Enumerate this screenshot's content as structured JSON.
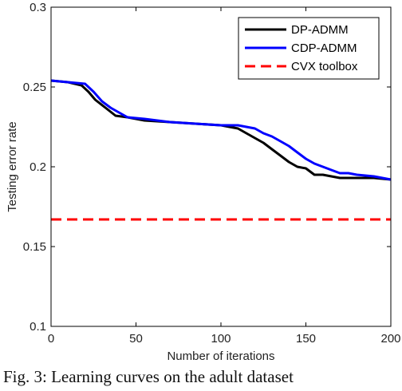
{
  "caption": "Fig. 3: Learning curves on the adult dataset",
  "chart_data": {
    "type": "line",
    "title": "",
    "xlabel": "Number of iterations",
    "ylabel": "Testing error rate",
    "xlim": [
      0,
      200
    ],
    "ylim": [
      0.1,
      0.3
    ],
    "xticks": [
      0,
      50,
      100,
      150,
      200
    ],
    "xtick_labels": [
      "0",
      "50",
      "100",
      "150",
      "200"
    ],
    "yticks": [
      0.1,
      0.15,
      0.2,
      0.25,
      0.3
    ],
    "ytick_labels": [
      "0.1",
      "0.15",
      "0.2",
      "0.25",
      "0.3"
    ],
    "grid": false,
    "legend_position": "top-right",
    "series": [
      {
        "name": "DP-ADMM",
        "color": "#000000",
        "style": "solid",
        "x": [
          0,
          10,
          18,
          22,
          26,
          32,
          38,
          45,
          55,
          70,
          85,
          100,
          110,
          115,
          120,
          125,
          130,
          135,
          140,
          145,
          150,
          155,
          160,
          165,
          170,
          180,
          190,
          200
        ],
        "y": [
          0.254,
          0.253,
          0.251,
          0.247,
          0.242,
          0.237,
          0.232,
          0.231,
          0.229,
          0.228,
          0.227,
          0.226,
          0.224,
          0.221,
          0.218,
          0.215,
          0.211,
          0.207,
          0.203,
          0.2,
          0.199,
          0.195,
          0.195,
          0.194,
          0.193,
          0.193,
          0.193,
          0.192
        ]
      },
      {
        "name": "CDP-ADMM",
        "color": "#0000ff",
        "style": "solid",
        "x": [
          0,
          10,
          20,
          25,
          30,
          35,
          40,
          45,
          55,
          70,
          85,
          100,
          110,
          115,
          120,
          125,
          130,
          135,
          140,
          145,
          150,
          155,
          160,
          165,
          170,
          175,
          180,
          190,
          200
        ],
        "y": [
          0.254,
          0.253,
          0.252,
          0.247,
          0.241,
          0.237,
          0.234,
          0.231,
          0.23,
          0.228,
          0.227,
          0.226,
          0.226,
          0.225,
          0.224,
          0.221,
          0.219,
          0.216,
          0.213,
          0.209,
          0.205,
          0.202,
          0.2,
          0.198,
          0.196,
          0.196,
          0.195,
          0.194,
          0.192
        ]
      },
      {
        "name": "CVX toolbox",
        "color": "#ff0000",
        "style": "dashed",
        "x": [
          0,
          200
        ],
        "y": [
          0.167,
          0.167
        ]
      }
    ]
  }
}
